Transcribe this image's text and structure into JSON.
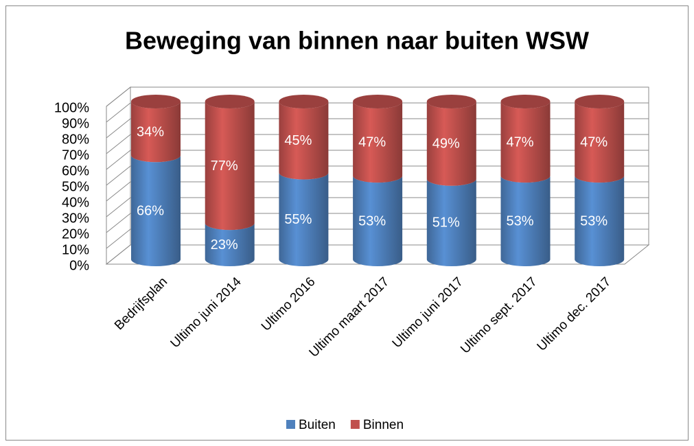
{
  "chart_data": {
    "type": "bar",
    "title": "Beweging van binnen naar buiten WSW",
    "categories": [
      "Bedrijfsplan",
      "Ultimo juni 2014",
      "Ultimo 2016",
      "Ultimo maart 2017",
      "Ultimo juni 2017",
      "Ultimo sept. 2017",
      "Ultimo dec. 2017"
    ],
    "series": [
      {
        "name": "Buiten",
        "color": "#4f81bd",
        "values": [
          66,
          23,
          55,
          53,
          51,
          53,
          53
        ],
        "value_labels": [
          "66%",
          "23%",
          "55%",
          "53%",
          "51%",
          "53%",
          "53%"
        ]
      },
      {
        "name": "Binnen",
        "color": "#c0504d",
        "values": [
          34,
          77,
          45,
          47,
          49,
          47,
          47
        ],
        "value_labels": [
          "34%",
          "77%",
          "45%",
          "47%",
          "49%",
          "47%",
          "47%"
        ]
      }
    ],
    "stacked": true,
    "ylim": [
      0,
      100
    ],
    "yticks": [
      {
        "value": 0,
        "label": "0%"
      },
      {
        "value": 10,
        "label": "10%"
      },
      {
        "value": 20,
        "label": "20%"
      },
      {
        "value": 30,
        "label": "30%"
      },
      {
        "value": 40,
        "label": "40%"
      },
      {
        "value": 50,
        "label": "50%"
      },
      {
        "value": 60,
        "label": "60%"
      },
      {
        "value": 70,
        "label": "70%"
      },
      {
        "value": 80,
        "label": "80%"
      },
      {
        "value": 90,
        "label": "90%"
      },
      {
        "value": 100,
        "label": "100%"
      }
    ],
    "grid": true,
    "legend": "bottom"
  }
}
